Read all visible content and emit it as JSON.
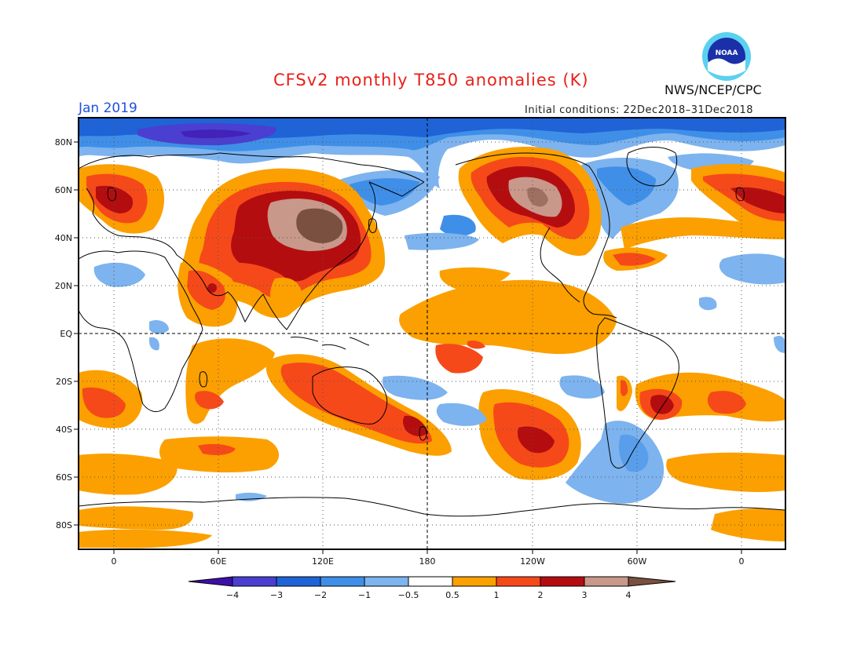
{
  "header": {
    "title": "CFSv2 monthly T850 anomalies (K)",
    "month": "Jan 2019",
    "initial_conditions": "Initial conditions: 22Dec2018–31Dec2018",
    "agency": "NWS/NCEP/CPC",
    "logo_text": "NOAA"
  },
  "map": {
    "lat_labels": [
      "80N",
      "60N",
      "40N",
      "20N",
      "EQ",
      "20S",
      "40S",
      "60S",
      "80S"
    ],
    "lon_labels": [
      "0",
      "60E",
      "120E",
      "180",
      "120W",
      "60W",
      "0"
    ]
  },
  "legend": {
    "labels": [
      "−4",
      "−3",
      "−2",
      "−1",
      "−0.5",
      "0.5",
      "1",
      "2",
      "3",
      "4"
    ],
    "colors": [
      "#3d0fa8",
      "#4a3fd0",
      "#1f63d6",
      "#3f8fe8",
      "#7db3ee",
      "#ffffff",
      "#fba000",
      "#f6491a",
      "#b40d10",
      "#c8988a",
      "#7a5040"
    ]
  },
  "colors": {
    "title": "#e8201a",
    "month": "#2050e0",
    "blue_strong": "#1f63d6",
    "blue_mid": "#3f8fe8",
    "blue_light": "#7db3ee",
    "blue_deep": "#4a3fd0",
    "orange": "#fba000",
    "red": "#f6491a",
    "dark_red": "#b40d10",
    "tan": "#c8988a",
    "brown": "#7a5040"
  }
}
